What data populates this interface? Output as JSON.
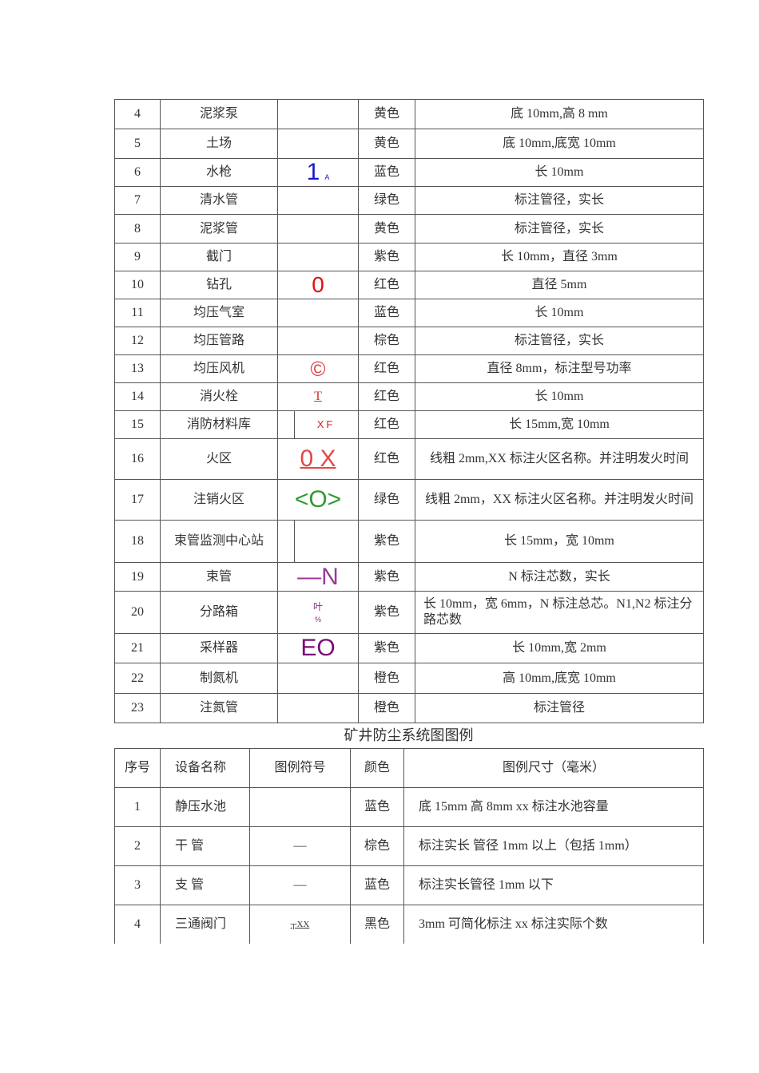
{
  "table1": {
    "rows": [
      {
        "no": "4",
        "name": "泥浆泵",
        "symbol": "",
        "color": "黄色",
        "size": "底 10mm,高 8 mm"
      },
      {
        "no": "5",
        "name": "土场",
        "symbol": "",
        "color": "黄色",
        "size": "底 10mm,底宽 10mm"
      },
      {
        "no": "6",
        "name": "水枪",
        "symbol": "1",
        "symbol_sub": "A",
        "symbol_color": "#1a1acc",
        "color": "蓝色",
        "size": "长 10mm"
      },
      {
        "no": "7",
        "name": "清水管",
        "symbol": "",
        "color": "绿色",
        "size": "标注管径，实长"
      },
      {
        "no": "8",
        "name": "泥浆管",
        "symbol": "",
        "color": "黄色",
        "size": "标注管径，实长"
      },
      {
        "no": "9",
        "name": "截门",
        "symbol": "",
        "color": "紫色",
        "size": "长 10mm，直径 3mm"
      },
      {
        "no": "10",
        "name": "钻孔",
        "symbol": "0",
        "symbol_color": "#e01010",
        "color": "红色",
        "size": "直径 5mm"
      },
      {
        "no": "11",
        "name": "均压气室",
        "symbol": "",
        "color": "蓝色",
        "size": "长 10mm"
      },
      {
        "no": "12",
        "name": "均压管路",
        "symbol": "",
        "color": "棕色",
        "size": "标注管径，实长"
      },
      {
        "no": "13",
        "name": "均压风机",
        "symbol": "©",
        "symbol_color": "#e04040",
        "color": "红色",
        "size": "直径 8mm，标注型号功率"
      },
      {
        "no": "14",
        "name": "消火栓",
        "symbol": "T",
        "symbol_color": "#d03030",
        "color": "红色",
        "size": "长 10mm"
      },
      {
        "no": "15",
        "name": "消防材料库",
        "symbol": "XF",
        "symbol_color": "#d02020",
        "color": "红色",
        "size": "长 15mm,宽 10mm"
      },
      {
        "no": "16",
        "name": "火区",
        "symbol": "0 X",
        "symbol_color": "#e04848",
        "color": "红色",
        "size": "线粗 2mm,XX 标注火区名称。并注明发火时间"
      },
      {
        "no": "17",
        "name": "注销火区",
        "symbol": "<O>",
        "symbol_color": "#2f9a2f",
        "color": "绿色",
        "size": "线粗 2mm，XX 标注火区名称。并注明发火时间"
      },
      {
        "no": "18",
        "name": "束管监测中心站",
        "symbol": "",
        "color": "紫色",
        "size": "长 15mm，宽 10mm"
      },
      {
        "no": "19",
        "name": "束管",
        "symbol": "—N",
        "symbol_color": "#9a3a9a",
        "color": "紫色",
        "size": "N 标注芯数，实长"
      },
      {
        "no": "20",
        "name": "分路箱",
        "symbol": "叶",
        "symbol_sub": "%",
        "symbol_color": "#8a2a8a",
        "color": "紫色",
        "size": "长 10mm，宽 6mm，N 标注总芯。N1,N2 标注分路芯数"
      },
      {
        "no": "21",
        "name": "采样器",
        "symbol": "EO",
        "symbol_color": "#7a0a7a",
        "color": "紫色",
        "size": "长 10mm,宽 2mm"
      },
      {
        "no": "22",
        "name": "制氮机",
        "symbol": "",
        "color": "橙色",
        "size": "高 10mm,底宽 10mm"
      },
      {
        "no": "23",
        "name": "注氮管",
        "symbol": "",
        "color": "橙色",
        "size": "标注管径"
      }
    ]
  },
  "caption": "矿井防尘系统图图例",
  "table2": {
    "headers": [
      "序号",
      "设备名称",
      "图例符号",
      "颜色",
      "图例尺寸（毫米）"
    ],
    "rows": [
      {
        "no": "1",
        "name": "静压水池",
        "symbol": "",
        "color": "蓝色",
        "size": "底 15mm 高 8mm  xx 标注水池容量"
      },
      {
        "no": "2",
        "name": "干  管",
        "symbol": "—",
        "color": "棕色",
        "size": "标注实长  管径 1mm 以上（包括 1mm）"
      },
      {
        "no": "3",
        "name": "支  管",
        "symbol": "—",
        "color": "蓝色",
        "size": "标注实长管径 1mm 以下"
      },
      {
        "no": "4",
        "name": "三通阀门",
        "symbol": "┬XX",
        "color": "黑色",
        "size": "3mm 可简化标注  xx 标注实际个数"
      }
    ]
  }
}
